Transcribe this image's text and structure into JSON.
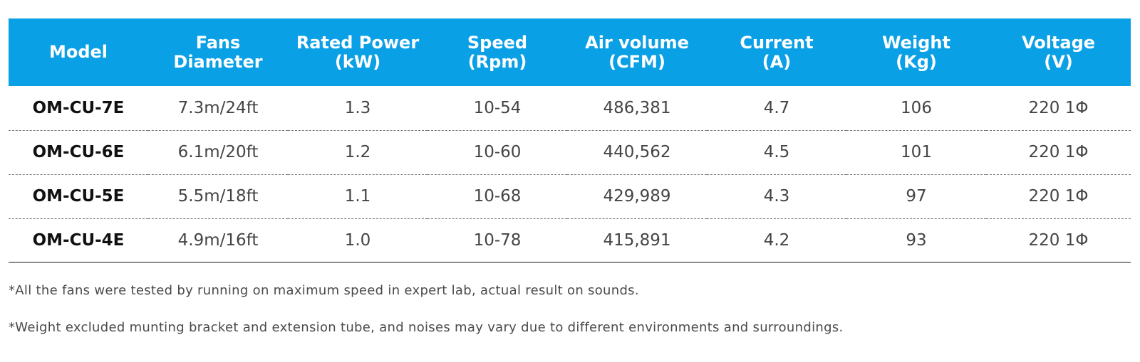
{
  "table": {
    "headers": [
      {
        "lines": [
          "Model"
        ]
      },
      {
        "lines": [
          "Fans",
          "Diameter"
        ]
      },
      {
        "lines": [
          "Rated Power",
          "(kW)"
        ]
      },
      {
        "lines": [
          "Speed",
          "(Rpm)"
        ]
      },
      {
        "lines": [
          "Air volume",
          "(CFM)"
        ]
      },
      {
        "lines": [
          "Current",
          "(A)"
        ]
      },
      {
        "lines": [
          "Weight",
          "(Kg)"
        ]
      },
      {
        "lines": [
          "Voltage",
          "(V)"
        ]
      }
    ],
    "rows": [
      [
        "OM-CU-7E",
        "7.3m/24ft",
        "1.3",
        "10-54",
        "486,381",
        "4.7",
        "106",
        "220 1Φ"
      ],
      [
        "OM-CU-6E",
        "6.1m/20ft",
        "1.2",
        "10-60",
        "440,562",
        "4.5",
        "101",
        "220 1Φ"
      ],
      [
        "OM-CU-5E",
        "5.5m/18ft",
        "1.1",
        "10-68",
        "429,989",
        "4.3",
        "97",
        "220 1Φ"
      ],
      [
        "OM-CU-4E",
        "4.9m/16ft",
        "1.0",
        "10-78",
        "415,891",
        "4.2",
        "93",
        "220 1Φ"
      ]
    ]
  },
  "notes": [
    "*All the fans were tested by running on maximum speed in expert lab, actual result on sounds.",
    "*Weight excluded munting bracket and extension tube, and noises may vary due to different environments and surroundings."
  ],
  "colors": {
    "header_bg": "#0aa0e6",
    "header_text": "#ffffff"
  }
}
